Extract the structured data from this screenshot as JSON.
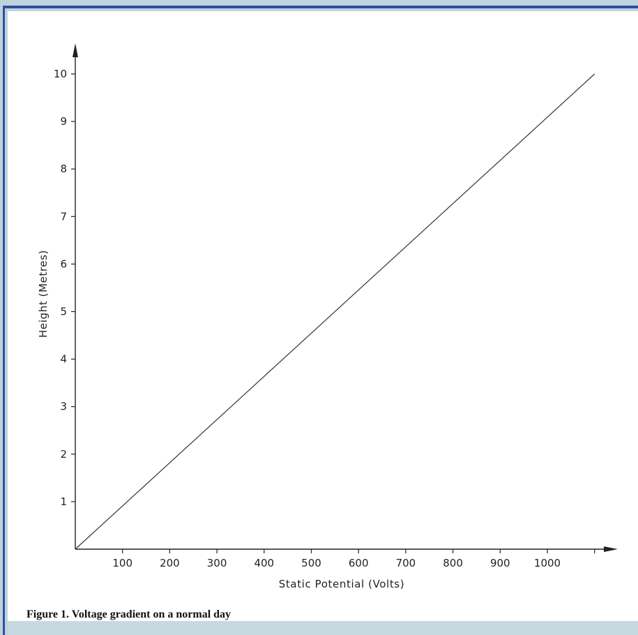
{
  "caption": "Figure 1. Voltage gradient on a normal day",
  "chart_data": {
    "type": "line",
    "title": "",
    "xlabel": "Static Potential (Volts)",
    "ylabel": "Height (Metres)",
    "x_ticks": [
      100,
      200,
      300,
      400,
      500,
      600,
      700,
      800,
      900,
      1000
    ],
    "y_ticks": [
      1,
      2,
      3,
      4,
      5,
      6,
      7,
      8,
      9,
      10
    ],
    "xlim": [
      0,
      1100
    ],
    "ylim": [
      0,
      10
    ],
    "grid": false,
    "series": [
      {
        "x": [
          0,
          1100
        ],
        "y": [
          0,
          10
        ]
      }
    ]
  }
}
